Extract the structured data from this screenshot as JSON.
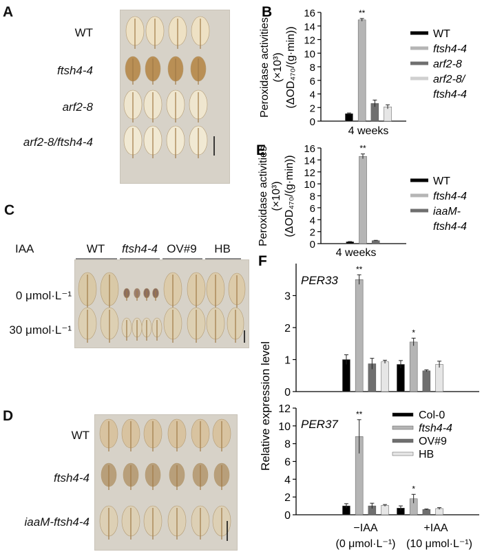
{
  "panels": {
    "A": {
      "letter": "A",
      "rows": [
        "WT",
        "ftsh4-4",
        "arf2-8",
        "arf2-8/ftsh4-4"
      ]
    },
    "C": {
      "letter": "C",
      "header": "IAA",
      "groups": [
        "WT",
        "ftsh4-4",
        "OV#9",
        "HB"
      ],
      "rows": [
        "0 μmol·L⁻¹",
        "30 μmol·L⁻¹"
      ]
    },
    "D": {
      "letter": "D",
      "rows": [
        "WT",
        "ftsh4-4",
        "iaaM-ftsh4-4"
      ]
    }
  },
  "chart_data": [
    {
      "panel": "B",
      "type": "bar",
      "ylabel": [
        "Peroxidase activities",
        "(×10³)",
        "(ΔOD₄₇₀/(g·min))"
      ],
      "ylim": [
        0,
        16
      ],
      "yticks": [
        0,
        2,
        4,
        6,
        8,
        10,
        12,
        14,
        16
      ],
      "categories": [
        "4 weeks"
      ],
      "series": [
        {
          "name": "WT",
          "values": [
            1.1
          ],
          "errors": [
            0.1
          ],
          "color": "#000000"
        },
        {
          "name": "ftsh4-4",
          "values": [
            14.9
          ],
          "errors": [
            0.2
          ],
          "color": "#b5b5b5"
        },
        {
          "name": "arf2-8",
          "values": [
            2.6
          ],
          "errors": [
            0.5
          ],
          "color": "#6f6f6f"
        },
        {
          "name": "arf2-8/ftsh4-4",
          "values": [
            2.1
          ],
          "errors": [
            0.3
          ],
          "color": "#e6e6e6"
        }
      ],
      "significance": [
        {
          "series": 1,
          "label": "**"
        }
      ],
      "legend_lines": [
        "WT",
        "ftsh4-4",
        "arf2-8",
        "arf2-8/",
        "ftsh4-4"
      ],
      "legend": "right"
    },
    {
      "panel": "E",
      "type": "bar",
      "ylabel": [
        "Peroxidase activities",
        "(×10³)",
        "(ΔOD₄₇₀/(g·min))"
      ],
      "ylim": [
        0,
        16
      ],
      "yticks": [
        0,
        2,
        4,
        6,
        8,
        10,
        12,
        14,
        16
      ],
      "categories": [
        "4 weeks"
      ],
      "series": [
        {
          "name": "WT",
          "values": [
            0.3
          ],
          "errors": [
            0.05
          ],
          "color": "#000000"
        },
        {
          "name": "ftsh4-4",
          "values": [
            14.6
          ],
          "errors": [
            0.4
          ],
          "color": "#b5b5b5"
        },
        {
          "name": "iaaM-ftsh4-4",
          "values": [
            0.5
          ],
          "errors": [
            0.05
          ],
          "color": "#6f6f6f"
        }
      ],
      "significance": [
        {
          "series": 1,
          "label": "**"
        }
      ],
      "legend_lines": [
        "WT",
        "ftsh4-4",
        "iaaM-",
        "ftsh4-4"
      ],
      "legend": "right"
    },
    {
      "panel": "F",
      "subtitle": "PER33",
      "type": "bar",
      "ylabel": "Relative expression level",
      "ylim": [
        0,
        4
      ],
      "yticks": [
        0,
        1,
        2,
        3
      ],
      "categories": [
        "−IAA",
        "+IAA"
      ],
      "series": [
        {
          "name": "Col-0",
          "values": [
            1.0,
            0.85
          ],
          "errors": [
            0.15,
            0.12
          ],
          "color": "#000000"
        },
        {
          "name": "ftsh4-4",
          "values": [
            3.5,
            1.55
          ],
          "errors": [
            0.15,
            0.12
          ],
          "color": "#b5b5b5"
        },
        {
          "name": "OV#9",
          "values": [
            0.87,
            0.65
          ],
          "errors": [
            0.17,
            0.03
          ],
          "color": "#6f6f6f"
        },
        {
          "name": "HB",
          "values": [
            0.93,
            0.85
          ],
          "errors": [
            0.05,
            0.1
          ],
          "color": "#e6e6e6"
        }
      ],
      "significance": [
        {
          "category": 0,
          "series": 1,
          "label": "**"
        },
        {
          "category": 1,
          "series": 1,
          "label": "*"
        }
      ]
    },
    {
      "panel": "F",
      "subtitle": "PER37",
      "type": "bar",
      "ylim": [
        0,
        12
      ],
      "yticks": [
        0,
        2,
        4,
        6,
        8,
        10,
        12
      ],
      "categories": [
        "−IAA",
        "+IAA"
      ],
      "category_sublabels": [
        "(0 μmol·L⁻¹)",
        "(10 μmol·L⁻¹)"
      ],
      "series": [
        {
          "name": "Col-0",
          "values": [
            1.0,
            0.75
          ],
          "errors": [
            0.25,
            0.25
          ],
          "color": "#000000"
        },
        {
          "name": "ftsh4-4",
          "values": [
            8.8,
            1.8
          ],
          "errors": [
            1.9,
            0.5
          ],
          "color": "#b5b5b5"
        },
        {
          "name": "OV#9",
          "values": [
            1.0,
            0.6
          ],
          "errors": [
            0.3,
            0.05
          ],
          "color": "#6f6f6f"
        },
        {
          "name": "HB",
          "values": [
            1.05,
            0.7
          ],
          "errors": [
            0.1,
            0.1
          ],
          "color": "#e6e6e6"
        }
      ],
      "significance": [
        {
          "category": 0,
          "series": 1,
          "label": "**"
        },
        {
          "category": 1,
          "series": 1,
          "label": "*"
        }
      ],
      "legend": "top-right"
    }
  ]
}
